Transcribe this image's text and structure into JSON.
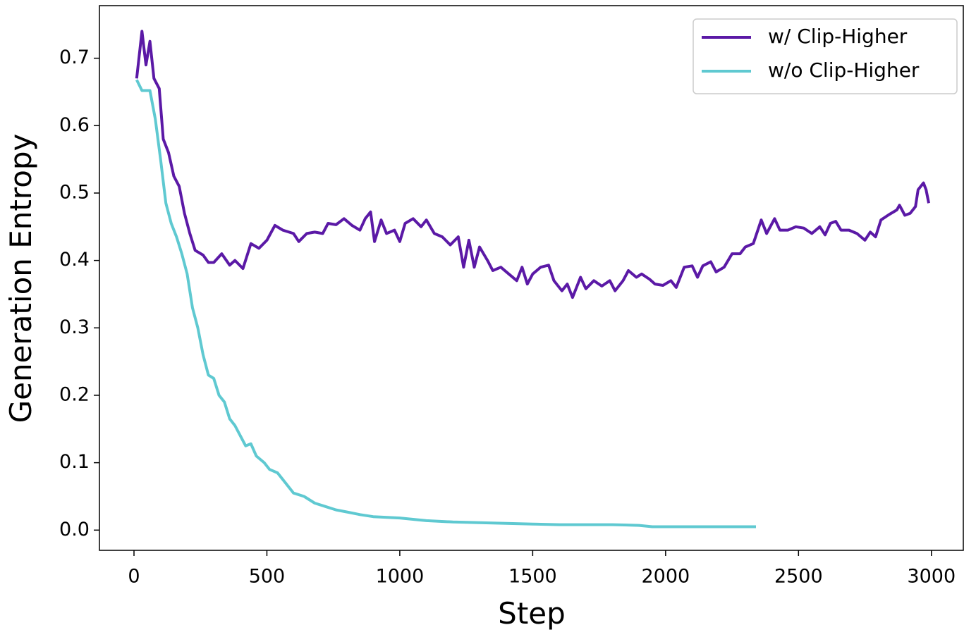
{
  "chart_data": {
    "type": "line",
    "xlabel": "Step",
    "ylabel": "Generation Entropy",
    "xlim": [
      -130,
      3120
    ],
    "xticks": [
      0,
      500,
      1000,
      1500,
      2000,
      2500,
      3000
    ],
    "ylim": [
      -0.03,
      0.778
    ],
    "yticks": [
      {
        "value": 0,
        "label": "0.0"
      },
      0.1,
      0.2,
      0.3,
      0.4,
      0.5,
      0.6,
      0.7
    ],
    "legend": "upper right",
    "series": [
      {
        "name": "w/ Clip-Higher",
        "color": "#5b19a6",
        "x": [
          10,
          30,
          45,
          60,
          75,
          95,
          110,
          130,
          150,
          170,
          190,
          210,
          230,
          260,
          280,
          300,
          330,
          360,
          380,
          410,
          440,
          470,
          500,
          530,
          560,
          600,
          620,
          650,
          680,
          710,
          730,
          760,
          790,
          820,
          850,
          870,
          890,
          905,
          930,
          950,
          980,
          1000,
          1020,
          1050,
          1080,
          1100,
          1130,
          1160,
          1190,
          1220,
          1240,
          1260,
          1280,
          1300,
          1330,
          1350,
          1380,
          1410,
          1440,
          1460,
          1480,
          1500,
          1530,
          1560,
          1580,
          1610,
          1630,
          1650,
          1680,
          1700,
          1730,
          1760,
          1790,
          1810,
          1840,
          1860,
          1890,
          1910,
          1940,
          1960,
          1990,
          2020,
          2040,
          2070,
          2100,
          2120,
          2140,
          2170,
          2190,
          2220,
          2250,
          2280,
          2300,
          2330,
          2360,
          2380,
          2410,
          2430,
          2460,
          2490,
          2520,
          2550,
          2580,
          2600,
          2620,
          2640,
          2660,
          2690,
          2720,
          2750,
          2770,
          2790,
          2810,
          2840,
          2870,
          2880,
          2900,
          2920,
          2940,
          2950,
          2970,
          2980,
          2990
        ],
        "values": [
          0.67,
          0.74,
          0.69,
          0.725,
          0.67,
          0.655,
          0.58,
          0.56,
          0.525,
          0.51,
          0.47,
          0.44,
          0.415,
          0.408,
          0.397,
          0.397,
          0.41,
          0.393,
          0.4,
          0.388,
          0.425,
          0.418,
          0.43,
          0.452,
          0.445,
          0.44,
          0.428,
          0.44,
          0.442,
          0.44,
          0.455,
          0.453,
          0.462,
          0.452,
          0.445,
          0.462,
          0.472,
          0.428,
          0.46,
          0.44,
          0.445,
          0.428,
          0.455,
          0.462,
          0.45,
          0.46,
          0.44,
          0.435,
          0.423,
          0.435,
          0.39,
          0.43,
          0.39,
          0.42,
          0.4,
          0.385,
          0.39,
          0.38,
          0.37,
          0.39,
          0.365,
          0.38,
          0.39,
          0.393,
          0.37,
          0.355,
          0.365,
          0.345,
          0.375,
          0.358,
          0.37,
          0.362,
          0.37,
          0.355,
          0.37,
          0.385,
          0.375,
          0.38,
          0.372,
          0.365,
          0.363,
          0.37,
          0.36,
          0.39,
          0.392,
          0.375,
          0.392,
          0.398,
          0.383,
          0.39,
          0.41,
          0.41,
          0.42,
          0.425,
          0.46,
          0.44,
          0.462,
          0.445,
          0.445,
          0.45,
          0.448,
          0.44,
          0.45,
          0.438,
          0.455,
          0.458,
          0.445,
          0.445,
          0.44,
          0.43,
          0.442,
          0.435,
          0.46,
          0.468,
          0.475,
          0.482,
          0.467,
          0.47,
          0.48,
          0.505,
          0.515,
          0.505,
          0.485
        ]
      },
      {
        "name": "w/o Clip-Higher",
        "color": "#5fc9d1",
        "x": [
          10,
          30,
          60,
          80,
          100,
          120,
          140,
          160,
          180,
          200,
          220,
          240,
          260,
          280,
          300,
          320,
          340,
          360,
          380,
          400,
          420,
          440,
          460,
          490,
          510,
          540,
          570,
          600,
          640,
          680,
          720,
          760,
          800,
          850,
          900,
          1000,
          1100,
          1200,
          1300,
          1400,
          1500,
          1600,
          1700,
          1800,
          1900,
          1950,
          2000,
          2100,
          2200,
          2340
        ],
        "values": [
          0.668,
          0.652,
          0.652,
          0.61,
          0.55,
          0.485,
          0.455,
          0.435,
          0.41,
          0.38,
          0.33,
          0.3,
          0.26,
          0.23,
          0.225,
          0.2,
          0.19,
          0.165,
          0.155,
          0.14,
          0.125,
          0.128,
          0.11,
          0.1,
          0.09,
          0.085,
          0.07,
          0.055,
          0.05,
          0.04,
          0.035,
          0.03,
          0.027,
          0.023,
          0.02,
          0.018,
          0.014,
          0.012,
          0.011,
          0.01,
          0.009,
          0.008,
          0.008,
          0.008,
          0.007,
          0.005,
          0.005,
          0.005,
          0.005,
          0.005
        ]
      }
    ]
  }
}
